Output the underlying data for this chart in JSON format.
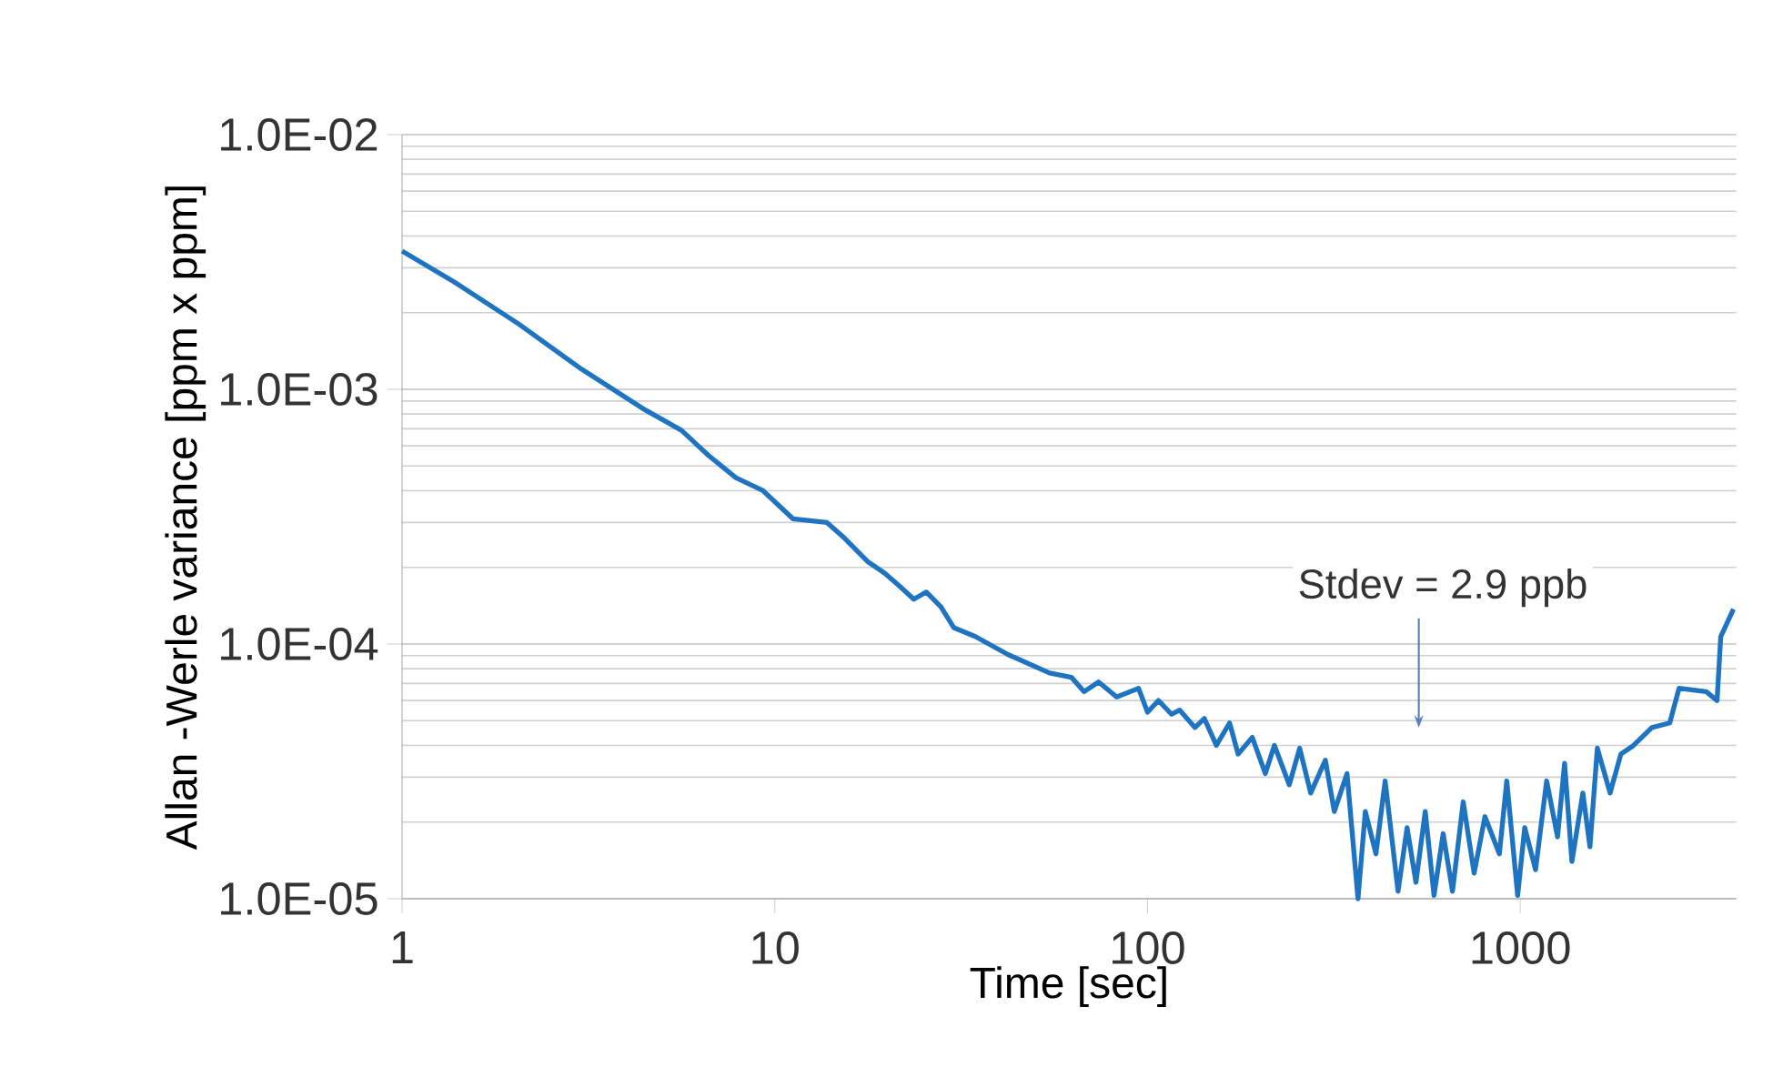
{
  "chart_data": {
    "type": "line",
    "xlabel": "Time [sec]",
    "ylabel": "Allan -Werle variance [ppm x ppm]",
    "log": "xy",
    "grid": "y",
    "xlim": [
      1,
      3800
    ],
    "ylim": [
      1e-05,
      0.01
    ],
    "xticks": [
      1,
      10,
      100,
      1000
    ],
    "yticks": [
      {
        "value": 0.01,
        "label": "1.0E-02"
      },
      {
        "value": 0.001,
        "label": "1.0E-03"
      },
      {
        "value": 0.0001,
        "label": "1.0E-04"
      },
      {
        "value": 1e-05,
        "label": "1.0E-05"
      }
    ],
    "annotations": [
      "Stdev = 2.9 ppb"
    ],
    "series": [
      {
        "color": "#1f74c2",
        "x": [
          1,
          1.38,
          2.05,
          3.03,
          4.49,
          5.62,
          6.64,
          7.86,
          9.3,
          11.2,
          13.8,
          15.4,
          17.8,
          19.7,
          21.5,
          23.6,
          25.5,
          27.9,
          30.2,
          34.5,
          42.2,
          54.6,
          62.5,
          67.6,
          73.9,
          82.6,
          94.6,
          100,
          107,
          116,
          122,
          134,
          142,
          153,
          166,
          175,
          191,
          207,
          219,
          240,
          256,
          274,
          300,
          317,
          343,
          367,
          384,
          410,
          434,
          470,
          497,
          525,
          556,
          587,
          621,
          658,
          703,
          752,
          804,
          879,
          920,
          984,
          1028,
          1099,
          1177,
          1259,
          1315,
          1376,
          1472,
          1538,
          1610,
          1742,
          1862,
          2014,
          2254,
          2518,
          2667,
          3155,
          3373,
          3451,
          3733
        ],
        "values": [
          0.00349,
          0.00264,
          0.00181,
          0.0012,
          0.00083,
          0.00069,
          0.00055,
          0.00045,
          0.0004,
          0.00031,
          0.0003,
          0.00026,
          0.00021,
          0.00019,
          0.00017,
          0.00015,
          0.00016,
          0.00014,
          0.000116,
          0.000107,
          9.1e-05,
          7.7e-05,
          7.4e-05,
          6.5e-05,
          7.1e-05,
          6.2e-05,
          6.7e-05,
          5.4e-05,
          6e-05,
          5.3e-05,
          5.5e-05,
          4.7e-05,
          5.1e-05,
          4e-05,
          4.9e-05,
          3.7e-05,
          4.3e-05,
          3.1e-05,
          4e-05,
          2.8e-05,
          3.9e-05,
          2.6e-05,
          3.5e-05,
          2.2e-05,
          3.1e-05,
          1e-05,
          2.2e-05,
          1.5e-05,
          2.9e-05,
          1.07e-05,
          1.9e-05,
          1.16e-05,
          2.2e-05,
          1.03e-05,
          1.8e-05,
          1.07e-05,
          2.4e-05,
          1.26e-05,
          2.1e-05,
          1.5e-05,
          2.9e-05,
          1.03e-05,
          1.9e-05,
          1.3e-05,
          2.9e-05,
          1.75e-05,
          3.4e-05,
          1.4e-05,
          2.6e-05,
          1.6e-05,
          3.9e-05,
          2.6e-05,
          3.7e-05,
          4e-05,
          4.7e-05,
          4.9e-05,
          6.7e-05,
          6.5e-05,
          6e-05,
          0.000107,
          0.000137
        ]
      }
    ]
  }
}
